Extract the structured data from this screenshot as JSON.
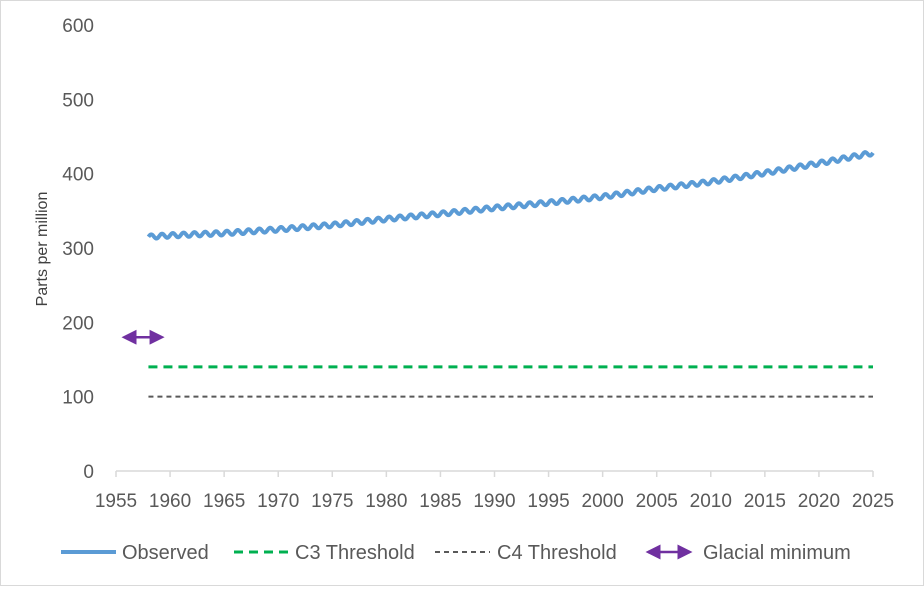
{
  "chart_data": {
    "type": "line",
    "xlabel": "",
    "ylabel": "Parts per million",
    "xlim": [
      1955,
      2025
    ],
    "ylim": [
      0,
      600
    ],
    "x_ticks": [
      "1955",
      "1960",
      "1965",
      "1970",
      "1975",
      "1980",
      "1985",
      "1990",
      "1995",
      "2000",
      "2005",
      "2010",
      "2015",
      "2020",
      "2025"
    ],
    "y_ticks": [
      "0",
      "100",
      "200",
      "300",
      "400",
      "500",
      "600"
    ],
    "grid": false,
    "legend_position": "bottom",
    "series": [
      {
        "name": "Observed",
        "color": "#5b9bd5",
        "style": "solid",
        "seasonal_amplitude": 3,
        "x": [
          1958,
          1960,
          1965,
          1970,
          1975,
          1980,
          1985,
          1990,
          1995,
          2000,
          2005,
          2010,
          2015,
          2020,
          2025
        ],
        "y": [
          315,
          317,
          320,
          325,
          331,
          339,
          346,
          354,
          361,
          369,
          380,
          389,
          401,
          414,
          428
        ]
      },
      {
        "name": "C3 Threshold",
        "color": "#00b050",
        "style": "dashed",
        "x": [
          1958,
          2025
        ],
        "y": [
          140,
          140
        ]
      },
      {
        "name": "C4 Threshold",
        "color": "#595959",
        "style": "dashed",
        "x": [
          1958,
          2025
        ],
        "y": [
          100,
          100
        ]
      },
      {
        "name": "Glacial minimum",
        "color": "#7030a0",
        "style": "double-arrow",
        "x": [
          1955,
          1960
        ],
        "y": [
          180,
          180
        ]
      }
    ]
  }
}
